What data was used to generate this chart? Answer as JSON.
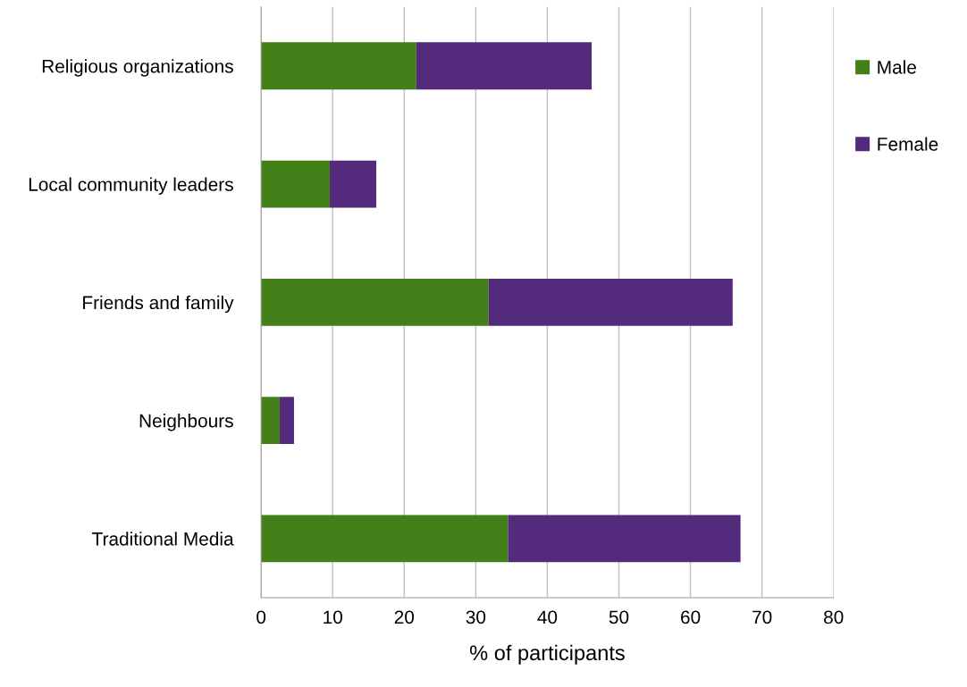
{
  "chart_data": {
    "type": "bar",
    "orientation": "horizontal",
    "stacked": true,
    "categories": [
      "Religious organizations",
      "Local community leaders",
      "Friends and family",
      "Neighbours",
      "Traditional Media"
    ],
    "series": [
      {
        "name": "Male",
        "color": "#43801a",
        "values": [
          21.7,
          9.6,
          31.8,
          2.6,
          34.5
        ]
      },
      {
        "name": "Female",
        "color": "#532a7c",
        "values": [
          24.5,
          6.5,
          34.1,
          2.0,
          32.5
        ]
      }
    ],
    "xlabel": "% of participants",
    "xlim": [
      0,
      80
    ],
    "xticks": [
      0,
      10,
      20,
      30,
      40,
      50,
      60,
      70,
      80
    ],
    "grid": "x",
    "legend": "right"
  }
}
